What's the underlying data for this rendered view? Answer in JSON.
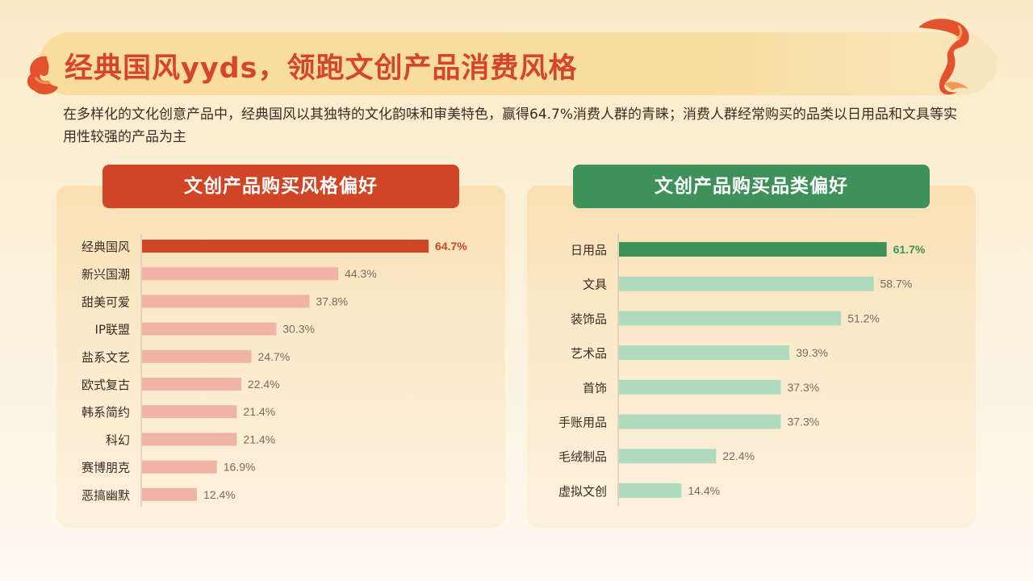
{
  "page": {
    "title": "经典国风yyds，领跑文创产品消费风格",
    "subtitle": "在多样化的文化创意产品中，经典国风以其独特的文化韵味和审美特色，赢得64.7%消费人群的青睐；消费人群经常购买的品类以日用品和文具等实用性较强的产品为主"
  },
  "colors": {
    "title": "#d4452a",
    "left_header": "#d04526",
    "right_header": "#3f915a",
    "left_highlight": "#d04526",
    "left_bar": "#efb4a6",
    "right_highlight": "#3f915a",
    "right_bar": "#aedbbd"
  },
  "chart_data": [
    {
      "type": "bar",
      "orientation": "horizontal",
      "title": "文创产品购买风格偏好",
      "categories": [
        "经典国风",
        "新兴国潮",
        "甜美可爱",
        "IP联盟",
        "盐系文艺",
        "欧式复古",
        "韩系简约",
        "科幻",
        "赛博朋克",
        "恶搞幽默"
      ],
      "values": [
        64.7,
        44.3,
        37.8,
        30.3,
        24.7,
        22.4,
        21.4,
        21.4,
        16.9,
        12.4
      ],
      "unit": "%",
      "highlight_index": 0,
      "xlim": [
        0,
        80
      ],
      "grid": false
    },
    {
      "type": "bar",
      "orientation": "horizontal",
      "title": "文创产品购买品类偏好",
      "categories": [
        "日用品",
        "文具",
        "装饰品",
        "艺术品",
        "首饰",
        "手账用品",
        "毛绒制品",
        "虚拟文创"
      ],
      "values": [
        61.7,
        58.7,
        51.2,
        39.3,
        37.3,
        37.3,
        22.4,
        14.4
      ],
      "unit": "%",
      "highlight_index": 0,
      "xlim": [
        0,
        80
      ],
      "grid": false
    }
  ]
}
